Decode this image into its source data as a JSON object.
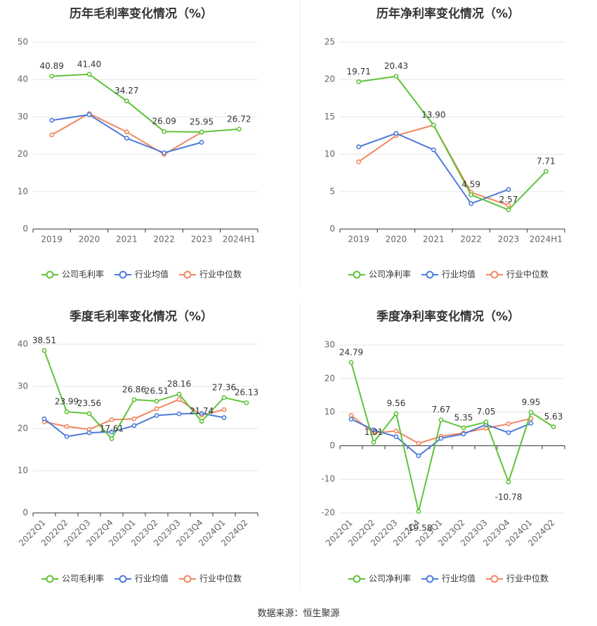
{
  "colors": {
    "company": "#5fc33a",
    "industry_avg": "#4f7bd9",
    "industry_median": "#f0875f",
    "grid": "#e6e6e6",
    "axis": "#333333"
  },
  "source": "数据来源：恒生聚源",
  "chart_data": [
    {
      "type": "line",
      "title": "历年毛利率变化情况（%）",
      "categories": [
        "2019",
        "2020",
        "2021",
        "2022",
        "2023",
        "2024H1"
      ],
      "ylim": [
        0,
        50
      ],
      "yticks": [
        "0",
        "10",
        "20",
        "30",
        "40",
        "50"
      ],
      "series": [
        {
          "name": "公司毛利率",
          "role": "company",
          "values": [
            40.89,
            41.4,
            34.27,
            26.09,
            25.95,
            26.72
          ],
          "labels": [
            "40.89",
            "41.40",
            "34.27",
            "26.09",
            "25.95",
            "26.72"
          ]
        },
        {
          "name": "行业均值",
          "role": "industry_avg",
          "values": [
            29.1,
            30.6,
            24.3,
            20.4,
            23.2,
            null
          ]
        },
        {
          "name": "行业中位数",
          "role": "industry_median",
          "values": [
            25.2,
            30.9,
            26.0,
            20.0,
            25.9,
            null
          ]
        }
      ],
      "legend": "bottom",
      "grid": true
    },
    {
      "type": "line",
      "title": "历年净利率变化情况（%）",
      "categories": [
        "2019",
        "2020",
        "2021",
        "2022",
        "2023",
        "2024H1"
      ],
      "ylim": [
        0,
        25
      ],
      "yticks": [
        "0",
        "5",
        "10",
        "15",
        "20",
        "25"
      ],
      "series": [
        {
          "name": "公司净利率",
          "role": "company",
          "values": [
            19.71,
            20.43,
            13.9,
            4.59,
            2.57,
            7.71
          ],
          "labels": [
            "19.71",
            "20.43",
            "13.90",
            "4.59",
            "2.57",
            "7.71"
          ]
        },
        {
          "name": "行业均值",
          "role": "industry_avg",
          "values": [
            11.0,
            12.8,
            10.6,
            3.4,
            5.3,
            null
          ]
        },
        {
          "name": "行业中位数",
          "role": "industry_median",
          "values": [
            9.0,
            12.5,
            13.9,
            4.9,
            3.2,
            null
          ]
        }
      ],
      "legend": "bottom",
      "grid": true
    },
    {
      "type": "line",
      "title": "季度毛利率变化情况（%）",
      "categories": [
        "2022Q1",
        "2022Q2",
        "2022Q3",
        "2022Q4",
        "2023Q1",
        "2023Q2",
        "2023Q3",
        "2023Q4",
        "2024Q1",
        "2024Q2"
      ],
      "ylim": [
        0,
        40
      ],
      "yticks": [
        "0",
        "10",
        "20",
        "30",
        "40"
      ],
      "series": [
        {
          "name": "公司毛利率",
          "role": "company",
          "values": [
            38.51,
            23.99,
            23.56,
            17.61,
            26.86,
            26.51,
            28.16,
            21.74,
            27.36,
            26.13
          ],
          "labels": [
            "38.51",
            "23.99",
            "23.56",
            "17.61",
            "26.86",
            "26.51",
            "28.16",
            "21.74",
            "27.36",
            "26.13"
          ]
        },
        {
          "name": "行业均值",
          "role": "industry_avg",
          "values": [
            22.3,
            18.1,
            19.0,
            19.2,
            20.7,
            23.1,
            23.5,
            23.6,
            22.6,
            null
          ]
        },
        {
          "name": "行业中位数",
          "role": "industry_median",
          "values": [
            21.6,
            20.5,
            19.8,
            22.1,
            22.3,
            24.7,
            26.9,
            23.2,
            24.5,
            null
          ]
        }
      ],
      "legend": "bottom",
      "grid": true
    },
    {
      "type": "line",
      "title": "季度净利率变化情况（%）",
      "categories": [
        "2022Q1",
        "2022Q2",
        "2022Q3",
        "2022Q4",
        "2023Q1",
        "2023Q2",
        "2023Q3",
        "2023Q4",
        "2024Q1",
        "2024Q2"
      ],
      "ylim": [
        -20,
        30
      ],
      "yticks": [
        "-20",
        "-10",
        "0",
        "10",
        "20",
        "30"
      ],
      "series": [
        {
          "name": "公司净利率",
          "role": "company",
          "values": [
            24.79,
            1.01,
            9.56,
            -19.58,
            7.67,
            5.35,
            7.05,
            -10.78,
            9.95,
            5.63
          ],
          "labels": [
            "24.79",
            "1.01",
            "9.56",
            "-19.58",
            "7.67",
            "5.35",
            "7.05",
            "-10.78",
            "9.95",
            "5.63"
          ]
        },
        {
          "name": "行业均值",
          "role": "industry_avg",
          "values": [
            7.9,
            4.7,
            2.7,
            -3.0,
            2.2,
            3.5,
            6.3,
            3.9,
            6.7,
            null
          ]
        },
        {
          "name": "行业中位数",
          "role": "industry_median",
          "values": [
            9.0,
            3.8,
            4.4,
            0.7,
            2.8,
            3.8,
            5.2,
            6.5,
            8.1,
            null
          ]
        }
      ],
      "legend": "bottom",
      "grid": true
    }
  ]
}
